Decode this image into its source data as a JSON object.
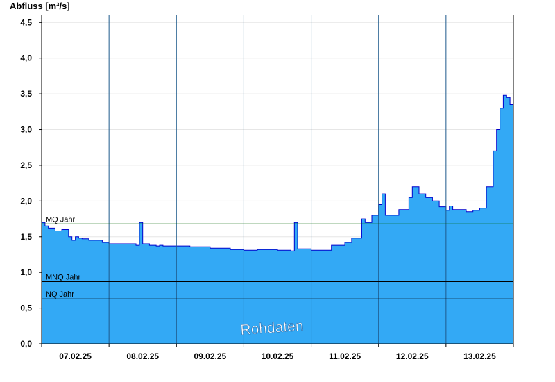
{
  "chart_data": {
    "type": "area",
    "title": "",
    "ylabel": "Abfluss [m³/s]",
    "xlabel": "",
    "ylim": [
      0,
      4.6
    ],
    "yticks": [
      0.0,
      0.5,
      1.0,
      1.5,
      2.0,
      2.5,
      3.0,
      3.5,
      4.0,
      4.5
    ],
    "ytick_labels": [
      "0,0",
      "0,5",
      "1,0",
      "1,5",
      "2,0",
      "2,5",
      "3,0",
      "3,5",
      "4,0",
      "4,5"
    ],
    "xlim": [
      0,
      7
    ],
    "x_unit": "days from 07.02.25 00:00",
    "x_tick_labels": [
      "07.02.25",
      "08.02.25",
      "09.02.25",
      "10.02.25",
      "11.02.25",
      "12.02.25",
      "13.02.25"
    ],
    "grid": true,
    "fill_color": "#33a9f5",
    "line_color": "#0000cc",
    "reference_lines": [
      {
        "name": "MQ Jahr",
        "value": 1.68,
        "color": "#006400"
      },
      {
        "name": "MNQ Jahr",
        "value": 0.87,
        "color": "#000000"
      },
      {
        "name": "NQ Jahr",
        "value": 0.63,
        "color": "#000000"
      }
    ],
    "watermark": "Rohdaten",
    "series": [
      {
        "name": "Abfluss",
        "x": [
          0.0,
          0.05,
          0.1,
          0.2,
          0.3,
          0.4,
          0.45,
          0.5,
          0.55,
          0.6,
          0.7,
          0.8,
          0.9,
          1.0,
          1.2,
          1.4,
          1.45,
          1.5,
          1.6,
          1.7,
          1.75,
          1.8,
          2.0,
          2.2,
          2.5,
          2.8,
          3.0,
          3.2,
          3.5,
          3.7,
          3.75,
          3.8,
          4.0,
          4.2,
          4.3,
          4.5,
          4.6,
          4.75,
          4.8,
          4.9,
          5.0,
          5.05,
          5.1,
          5.3,
          5.45,
          5.5,
          5.6,
          5.7,
          5.8,
          5.9,
          6.0,
          6.05,
          6.1,
          6.3,
          6.4,
          6.5,
          6.6,
          6.7,
          6.75,
          6.8,
          6.85,
          6.9,
          6.95,
          7.0
        ],
        "y": [
          1.7,
          1.65,
          1.62,
          1.58,
          1.6,
          1.5,
          1.45,
          1.5,
          1.48,
          1.47,
          1.45,
          1.45,
          1.42,
          1.4,
          1.4,
          1.38,
          1.7,
          1.4,
          1.38,
          1.37,
          1.38,
          1.37,
          1.37,
          1.36,
          1.34,
          1.32,
          1.31,
          1.32,
          1.31,
          1.3,
          1.7,
          1.33,
          1.31,
          1.31,
          1.38,
          1.42,
          1.48,
          1.75,
          1.7,
          1.8,
          1.95,
          2.1,
          1.8,
          1.88,
          2.05,
          2.2,
          2.1,
          2.05,
          2.0,
          1.92,
          1.87,
          1.93,
          1.88,
          1.85,
          1.87,
          1.9,
          2.2,
          2.7,
          3.0,
          3.3,
          3.48,
          3.45,
          3.35,
          3.25
        ]
      }
    ]
  }
}
